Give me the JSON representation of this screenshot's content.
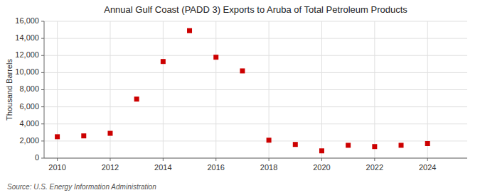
{
  "chart_data": {
    "type": "scatter",
    "title": "Annual Gulf Coast (PADD 3) Exports to Aruba of Total Petroleum Products",
    "y_label": "Thousand Barrels",
    "source": "Source: U.S. Energy Information Administration",
    "x": [
      2010,
      2011,
      2012,
      2013,
      2014,
      2015,
      2016,
      2017,
      2018,
      2019,
      2020,
      2021,
      2022,
      2023,
      2024
    ],
    "values": [
      2500,
      2600,
      2900,
      6900,
      11300,
      14900,
      11800,
      10200,
      2100,
      1600,
      850,
      1500,
      1350,
      1500,
      1700
    ],
    "color": "#cc0000",
    "marker": "square",
    "xlim": [
      2009.5,
      2025.5
    ],
    "ylim": [
      0,
      16000
    ],
    "xticks": [
      2010,
      2012,
      2014,
      2016,
      2018,
      2020,
      2022,
      2024
    ],
    "yticks": [
      0,
      {
        "value": 2000,
        "label": "2,000"
      },
      {
        "value": 4000,
        "label": "4,000"
      },
      {
        "value": 6000,
        "label": "6,000"
      },
      {
        "value": 8000,
        "label": "8,000"
      },
      {
        "value": 10000,
        "label": "10,000"
      },
      {
        "value": 12000,
        "label": "12,000"
      },
      {
        "value": 14000,
        "label": "14,000"
      },
      {
        "value": 16000,
        "label": "16,000"
      }
    ],
    "grid": true
  }
}
